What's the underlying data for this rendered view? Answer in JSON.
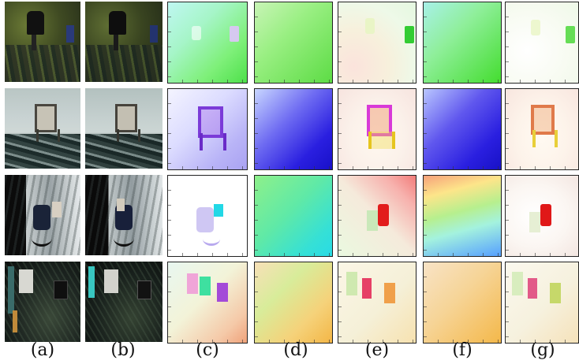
{
  "figure": {
    "column_labels": [
      "(a)",
      "(b)",
      "(c)",
      "(d)",
      "(e)",
      "(f)",
      "(g)"
    ],
    "rows": [
      {
        "scene": "city-aerial-chairs"
      },
      {
        "scene": "road-rocks-chair"
      },
      {
        "scene": "snowy-forest-chairs"
      },
      {
        "scene": "dark-forest-chairs"
      }
    ]
  }
}
